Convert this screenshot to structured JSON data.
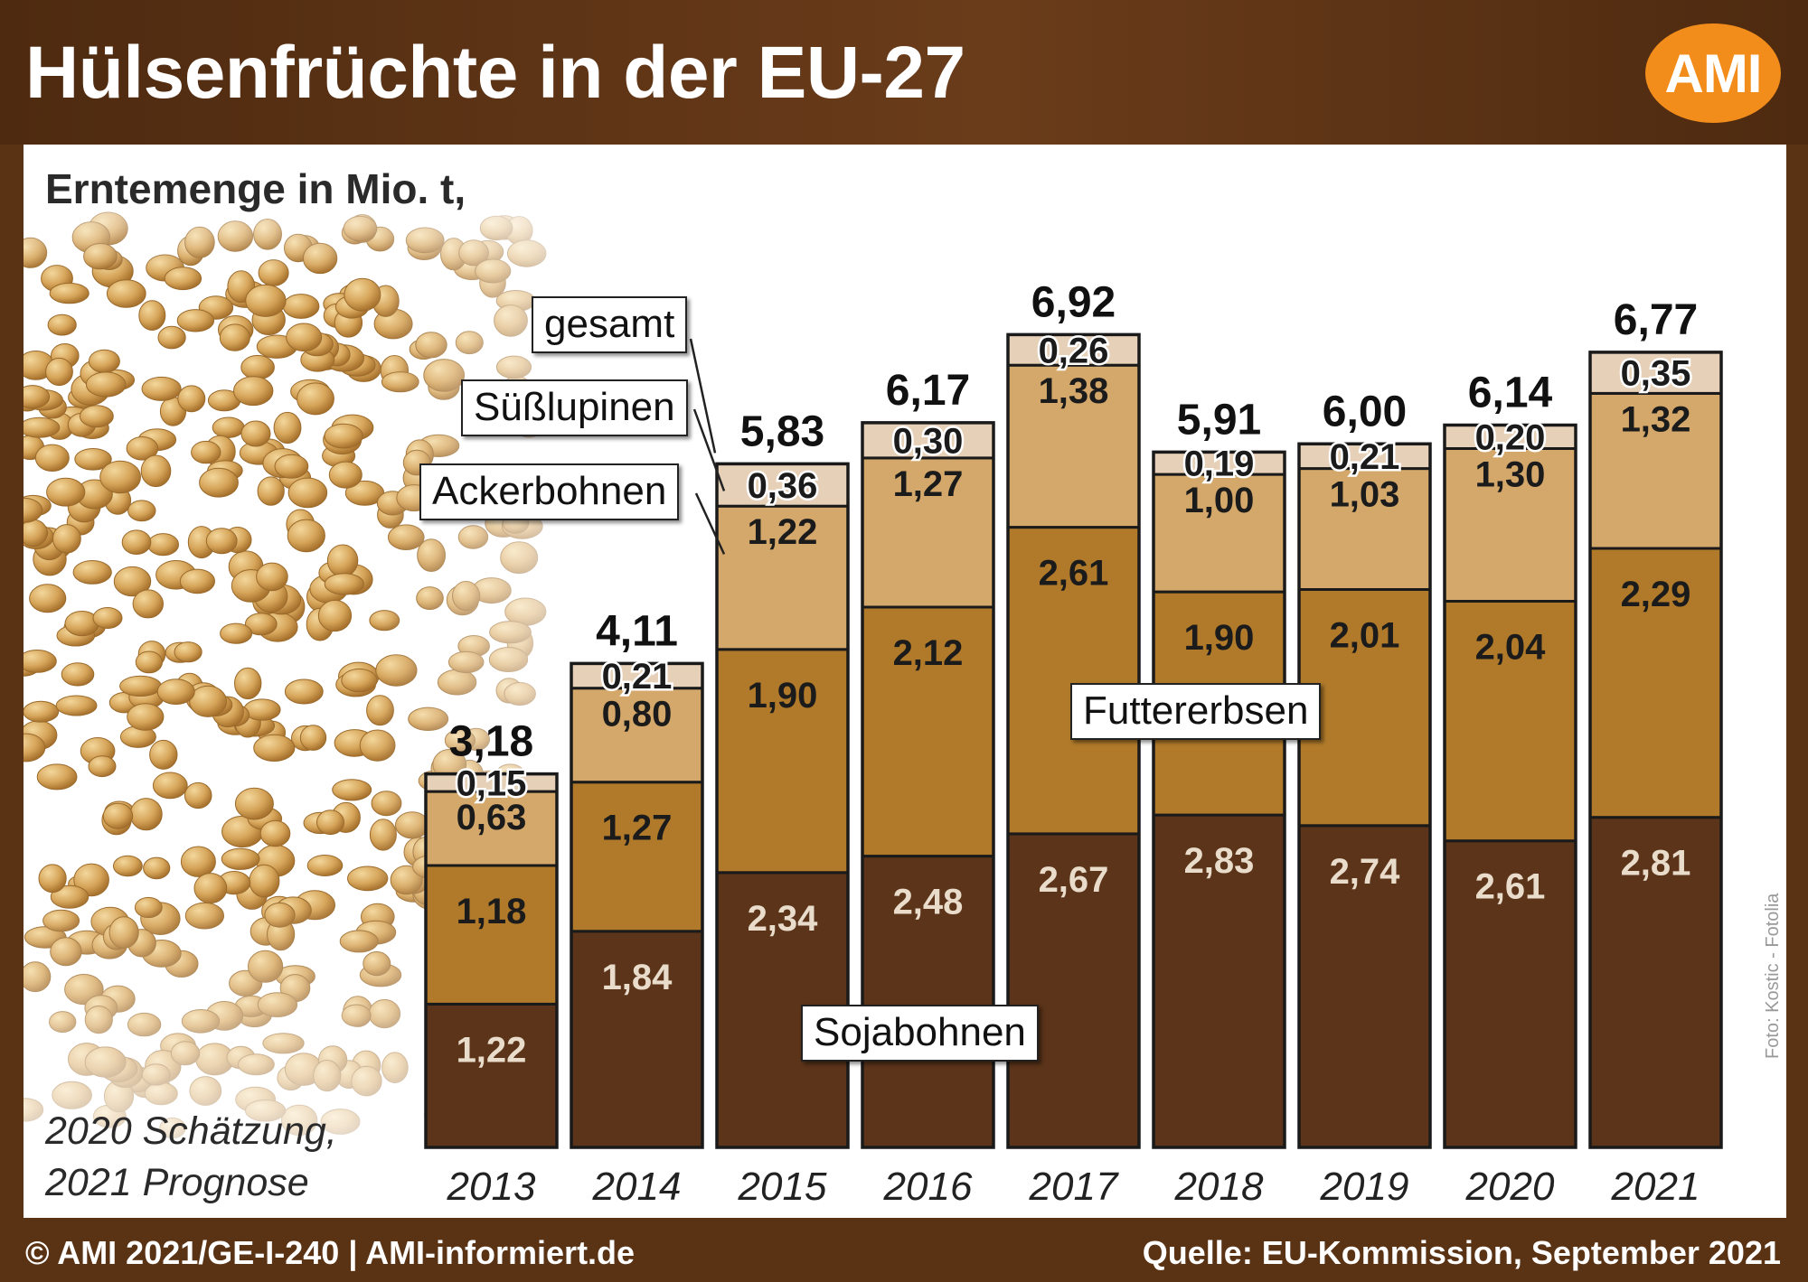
{
  "title": "Hülsenfrüchte in der EU-27",
  "logo": "AMI",
  "subtitle": "Erntemenge in Mio. t,",
  "notes": [
    "2020 Schätzung,",
    "2021 Prognose"
  ],
  "photo_credit": "Foto: Kostic - Fotolia",
  "footer": {
    "left": "© AMI 2021/GE-I-240 | AMI-informiert.de",
    "right": "Quelle: EU-Kommission, September 2021"
  },
  "colors": {
    "header_bg": "#5a3214",
    "logo": "#f28c1a",
    "Sojabohnen": "#5b3419",
    "Futtererbsen": "#b07a2a",
    "Ackerbohnen": "#d4a86a",
    "Süßlupinen": "#e6d0b8"
  },
  "chart_data": {
    "type": "bar",
    "stacked": true,
    "categories": [
      "2013",
      "2014",
      "2015",
      "2016",
      "2017",
      "2018",
      "2019",
      "2020",
      "2021"
    ],
    "series": [
      {
        "name": "Sojabohnen",
        "values": [
          1.22,
          1.84,
          2.34,
          2.48,
          2.67,
          2.83,
          2.74,
          2.61,
          2.81
        ],
        "labels": [
          "1,22",
          "1,84",
          "2,34",
          "2,48",
          "2,67",
          "2,83",
          "2,74",
          "2,61",
          "2,81"
        ]
      },
      {
        "name": "Futtererbsen",
        "values": [
          1.18,
          1.27,
          1.9,
          2.12,
          2.61,
          1.9,
          2.01,
          2.04,
          2.29
        ],
        "labels": [
          "1,18",
          "1,27",
          "1,90",
          "2,12",
          "2,61",
          "1,90",
          "2,01",
          "2,04",
          "2,29"
        ]
      },
      {
        "name": "Ackerbohnen",
        "values": [
          0.63,
          0.8,
          1.22,
          1.27,
          1.38,
          1.0,
          1.03,
          1.3,
          1.32
        ],
        "labels": [
          "0,63",
          "0,80",
          "1,22",
          "1,27",
          "1,38",
          "1,00",
          "1,03",
          "1,30",
          "1,32"
        ]
      },
      {
        "name": "Süßlupinen",
        "values": [
          0.15,
          0.21,
          0.36,
          0.3,
          0.26,
          0.19,
          0.21,
          0.2,
          0.35
        ],
        "labels": [
          "0,15",
          "0,21",
          "0,36",
          "0,30",
          "0,26",
          "0,19",
          "0,21",
          "0,20",
          "0,35"
        ]
      }
    ],
    "totals": [
      3.18,
      4.11,
      5.83,
      6.17,
      6.92,
      5.91,
      6.0,
      6.14,
      6.77
    ],
    "total_labels": [
      "3,18",
      "4,11",
      "5,83",
      "6,17",
      "6,92",
      "5,91",
      "6,00",
      "6,14",
      "6,77"
    ],
    "total_label_name": "gesamt",
    "ylim": [
      0,
      7.3
    ],
    "grid": false,
    "legend": "inline labels"
  }
}
